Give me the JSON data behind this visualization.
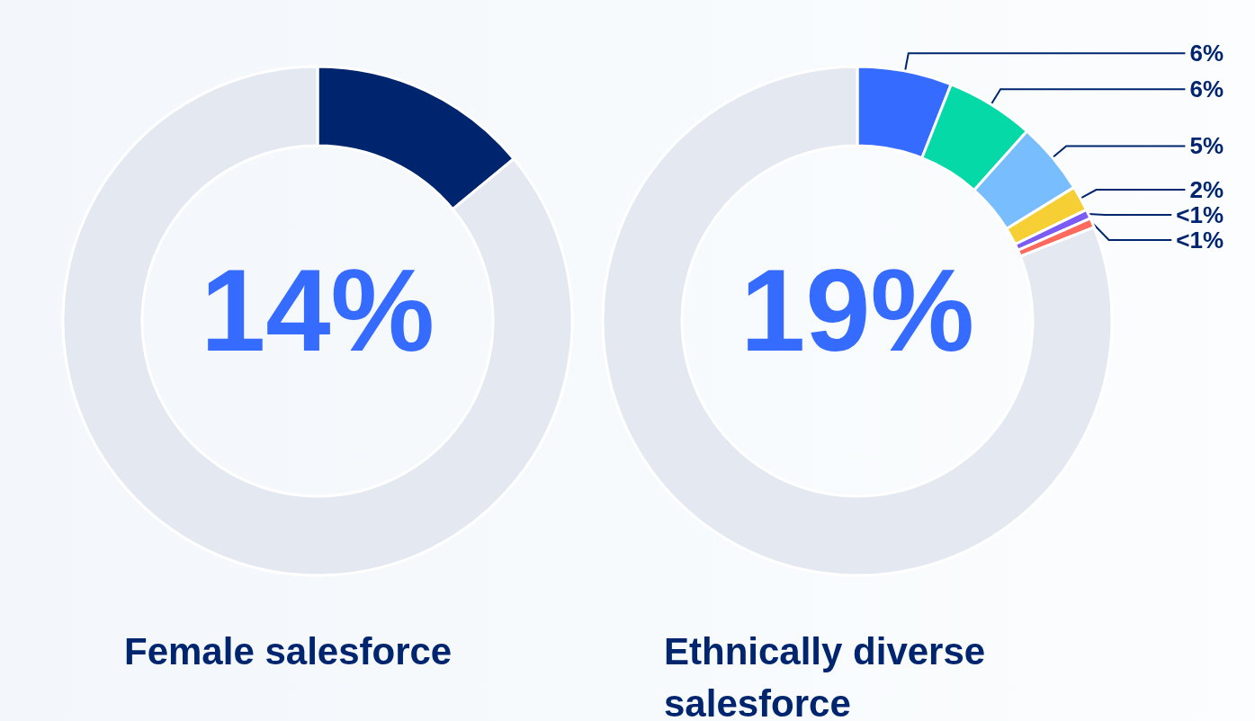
{
  "chart_data": [
    {
      "type": "donut",
      "title": "Female salesforce",
      "categories": [
        null,
        null
      ],
      "values": [
        14,
        86
      ],
      "colors": [
        "#00256f",
        "#e3e8f1"
      ],
      "annotations": [
        "14%"
      ]
    },
    {
      "type": "donut",
      "title": "Ethnically diverse salesforce",
      "categories": [
        null,
        null,
        null,
        null,
        null,
        null,
        null
      ],
      "values": [
        6,
        5.6,
        4.6,
        1.6,
        0.6,
        0.6,
        81
      ],
      "colors": [
        "#366bff",
        "#05d9a8",
        "#78befe",
        "#f6cf35",
        "#7a5cf5",
        "#ff6a5c",
        "#e3e8f1"
      ],
      "value_labels": [
        "6%",
        "6%",
        "5%",
        "2%",
        "<1%",
        "<1%",
        null
      ],
      "annotations": [
        "19%"
      ]
    }
  ]
}
